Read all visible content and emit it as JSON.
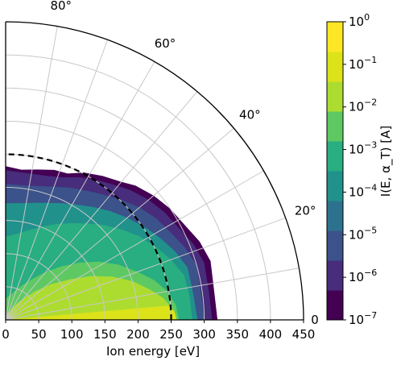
{
  "chart_data": {
    "type": "polar-contour",
    "title": "",
    "xlabel": "Ion energy [eV]",
    "r_ticks": [
      0,
      50,
      100,
      150,
      200,
      250,
      300,
      350,
      400,
      450
    ],
    "r_lim": [
      0,
      450
    ],
    "theta_ticks_deg": [
      0,
      20,
      40,
      60,
      80
    ],
    "theta_lim_deg": [
      0,
      90
    ],
    "grid": true,
    "colorbar": {
      "label": "I(E, α_T) [A]",
      "scale": "log",
      "ticks": [
        "10^-7",
        "10^-6",
        "10^-5",
        "10^-4",
        "10^-3",
        "10^-2",
        "10^-1",
        "10^0"
      ],
      "levels_log10": [
        -7,
        -6.5,
        -6,
        -5.5,
        -5,
        -4.5,
        -4,
        -3.5,
        -3,
        -2.5,
        -2,
        -1.5,
        -1,
        -0.5,
        0
      ],
      "colors": [
        "#440154",
        "#472d7b",
        "#3b528b",
        "#2c728e",
        "#21918c",
        "#28ae80",
        "#5ec962",
        "#addc30",
        "#dce319",
        "#fde725"
      ]
    },
    "dashed_arc_radius_eV": 250,
    "contours": [
      {
        "level_log10": -7,
        "outline": [
          [
            320,
            0
          ],
          [
            318,
            8
          ],
          [
            322,
            16
          ],
          [
            316,
            22
          ],
          [
            306,
            28
          ],
          [
            300,
            34
          ],
          [
            292,
            40
          ],
          [
            282,
            46
          ],
          [
            272,
            50
          ],
          [
            262,
            56
          ],
          [
            252,
            62
          ],
          [
            240,
            67
          ],
          [
            238,
            72
          ],
          [
            232,
            78
          ],
          [
            228,
            84
          ],
          [
            232,
            90
          ]
        ]
      },
      {
        "level_log10": -6,
        "outline": [
          [
            312,
            0
          ],
          [
            310,
            8
          ],
          [
            312,
            16
          ],
          [
            306,
            22
          ],
          [
            296,
            28
          ],
          [
            290,
            34
          ],
          [
            282,
            40
          ],
          [
            272,
            46
          ],
          [
            262,
            51
          ],
          [
            252,
            57
          ],
          [
            242,
            63
          ],
          [
            232,
            68
          ],
          [
            226,
            74
          ],
          [
            224,
            80
          ],
          [
            224,
            85
          ],
          [
            226,
            90
          ]
        ]
      },
      {
        "level_log10": -5,
        "outline": [
          [
            300,
            0
          ],
          [
            298,
            8
          ],
          [
            300,
            16
          ],
          [
            292,
            22
          ],
          [
            282,
            28
          ],
          [
            274,
            34
          ],
          [
            264,
            40
          ],
          [
            252,
            46
          ],
          [
            240,
            52
          ],
          [
            230,
            58
          ],
          [
            222,
            64
          ],
          [
            214,
            70
          ],
          [
            208,
            76
          ],
          [
            205,
            82
          ],
          [
            205,
            90
          ]
        ]
      },
      {
        "level_log10": -4,
        "outline": [
          [
            290,
            0
          ],
          [
            286,
            8
          ],
          [
            286,
            16
          ],
          [
            276,
            22
          ],
          [
            264,
            28
          ],
          [
            252,
            34
          ],
          [
            240,
            40
          ],
          [
            228,
            46
          ],
          [
            216,
            52
          ],
          [
            205,
            58
          ],
          [
            196,
            64
          ],
          [
            188,
            70
          ],
          [
            182,
            76
          ],
          [
            178,
            82
          ],
          [
            176,
            90
          ]
        ]
      },
      {
        "level_log10": -3.5,
        "outline": [
          [
            282,
            0
          ],
          [
            280,
            8
          ],
          [
            278,
            14
          ],
          [
            266,
            20
          ],
          [
            252,
            26
          ],
          [
            238,
            32
          ],
          [
            222,
            38
          ],
          [
            206,
            44
          ],
          [
            190,
            50
          ],
          [
            176,
            56
          ],
          [
            164,
            62
          ],
          [
            152,
            68
          ],
          [
            142,
            74
          ],
          [
            134,
            80
          ],
          [
            128,
            86
          ],
          [
            126,
            90
          ]
        ]
      },
      {
        "level_log10": -3,
        "outline": [
          [
            272,
            0
          ],
          [
            268,
            6
          ],
          [
            260,
            12
          ],
          [
            246,
            18
          ],
          [
            228,
            24
          ],
          [
            210,
            30
          ],
          [
            190,
            36
          ],
          [
            170,
            42
          ],
          [
            150,
            48
          ],
          [
            132,
            54
          ],
          [
            116,
            60
          ],
          [
            102,
            66
          ],
          [
            92,
            72
          ],
          [
            84,
            78
          ],
          [
            78,
            84
          ],
          [
            76,
            90
          ]
        ]
      },
      {
        "level_log10": -2.5,
        "outline": [
          [
            262,
            0
          ],
          [
            258,
            5
          ],
          [
            248,
            10
          ],
          [
            232,
            15
          ],
          [
            212,
            20
          ],
          [
            190,
            26
          ],
          [
            166,
            32
          ],
          [
            140,
            38
          ],
          [
            116,
            44
          ],
          [
            94,
            50
          ],
          [
            76,
            56
          ],
          [
            62,
            62
          ],
          [
            52,
            68
          ],
          [
            44,
            74
          ],
          [
            38,
            80
          ],
          [
            34,
            86
          ],
          [
            32,
            90
          ]
        ]
      },
      {
        "level_log10": -2,
        "outline": [
          [
            258,
            0
          ],
          [
            252,
            4
          ],
          [
            240,
            8
          ],
          [
            222,
            12
          ],
          [
            200,
            17
          ],
          [
            174,
            22
          ],
          [
            146,
            27
          ],
          [
            116,
            32
          ],
          [
            88,
            38
          ],
          [
            62,
            44
          ],
          [
            42,
            50
          ],
          [
            28,
            56
          ],
          [
            18,
            62
          ],
          [
            12,
            68
          ],
          [
            8,
            74
          ],
          [
            6,
            80
          ]
        ]
      },
      {
        "level_log10": -1.5,
        "outline": [
          [
            258,
            0
          ],
          [
            256,
            2
          ],
          [
            250,
            4
          ],
          [
            242,
            6
          ],
          [
            232,
            8
          ],
          [
            220,
            10
          ],
          [
            206,
            12
          ],
          [
            190,
            14
          ],
          [
            174,
            16
          ],
          [
            160,
            18
          ]
        ]
      },
      {
        "level_log10": -1,
        "outline": [
          [
            258,
            0
          ],
          [
            257,
            1.5
          ],
          [
            255,
            3
          ],
          [
            251,
            4
          ],
          [
            246,
            5
          ]
        ]
      }
    ]
  }
}
